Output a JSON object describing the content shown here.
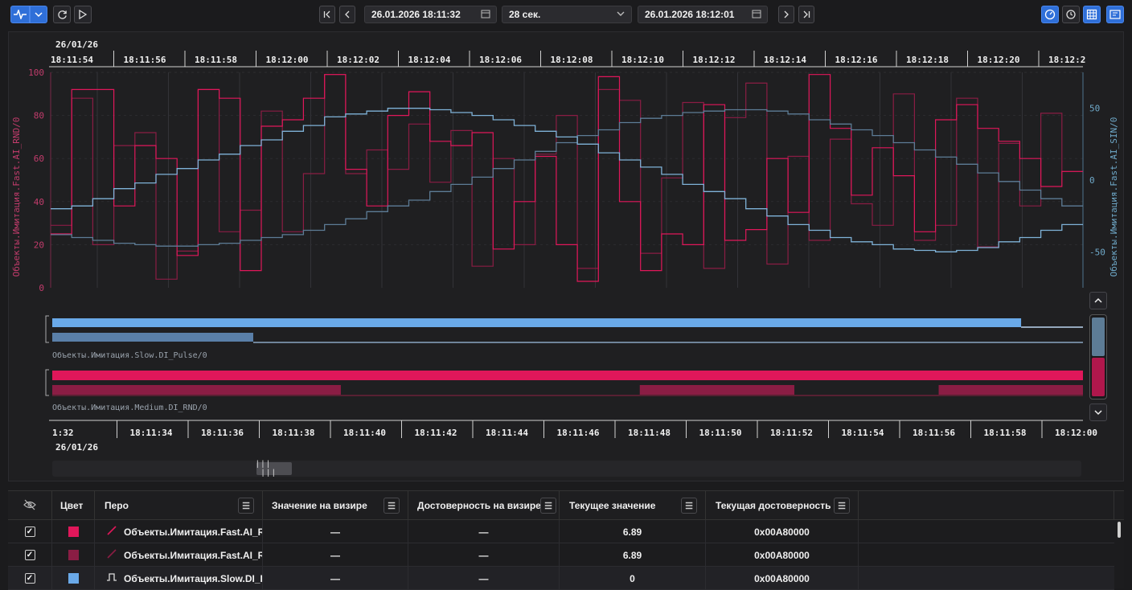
{
  "toolbar": {
    "mode_icon": "pulse-icon",
    "start_time": "26.01.2026 18:11:32",
    "duration": "28 сек.",
    "end_time": "26.01.2026 18:12:01"
  },
  "top_axis": {
    "date": "26/01/26",
    "ticks": [
      "18:11:54",
      "18:11:56",
      "18:11:58",
      "18:12:00",
      "18:12:02",
      "18:12:04",
      "18:12:06",
      "18:12:08",
      "18:12:10",
      "18:12:12",
      "18:12:14",
      "18:12:16",
      "18:12:18",
      "18:12:20",
      "18:12:2"
    ]
  },
  "bottom_axis": {
    "date": "26/01/26",
    "ticks": [
      "1:32",
      "18:11:34",
      "18:11:36",
      "18:11:38",
      "18:11:40",
      "18:11:42",
      "18:11:44",
      "18:11:46",
      "18:11:48",
      "18:11:50",
      "18:11:52",
      "18:11:54",
      "18:11:56",
      "18:11:58",
      "18:12:00"
    ]
  },
  "chart": {
    "left_axis_label": "Объекты.Имитация.Fast.AI_RND/0",
    "right_axis_label": "Объекты.Имитация.Fast.AI_SIN/0",
    "left_ticks": [
      "100",
      "80",
      "60",
      "40",
      "20",
      "0"
    ],
    "right_ticks": [
      "50",
      "0",
      "-50"
    ],
    "colors": {
      "rnd_bright": "#e0175a",
      "rnd_dark": "#8a1d44",
      "sin": "#7fb2d8",
      "sin_dark": "#5d7c96",
      "pulse": "#6aa9e8",
      "pulse_dark": "#5a7fa8"
    },
    "rnd_series": [
      25,
      92,
      92,
      38,
      66,
      60,
      15,
      92,
      88,
      8,
      75,
      78,
      88,
      99,
      55,
      38,
      80,
      91,
      68,
      66,
      72,
      18,
      40,
      61,
      20,
      3,
      98,
      40,
      8,
      25,
      20,
      85,
      22,
      27,
      60,
      35,
      99,
      74,
      43,
      65,
      52,
      26,
      78,
      85,
      74,
      68,
      60,
      47,
      54
    ],
    "rnd2_series": [
      29,
      88,
      20,
      66,
      72,
      4,
      17,
      92,
      26,
      36,
      82,
      26,
      53,
      99,
      53,
      64,
      55,
      76,
      49,
      73,
      10,
      60,
      20,
      62,
      80,
      9,
      92,
      87,
      16,
      51,
      86,
      9,
      79,
      95,
      11,
      61,
      22,
      69,
      39,
      29,
      90,
      22,
      29,
      88,
      19,
      67,
      38,
      81,
      54
    ],
    "sin_series": [
      -20,
      -18,
      -13,
      -6,
      -2,
      4,
      8,
      14,
      18,
      24,
      28,
      34,
      38,
      44,
      46,
      48,
      50,
      50,
      49,
      47,
      45,
      42,
      38,
      34,
      30,
      25,
      19,
      14,
      9,
      4,
      -3,
      -8,
      -13,
      -20,
      -25,
      -31,
      -35,
      -40,
      -43,
      -45,
      -48,
      -49,
      -50,
      -49,
      -47,
      -43,
      -40,
      -35,
      -31
    ],
    "sin2_series": [
      -38,
      -40,
      -42,
      -44,
      -45,
      -46,
      -46,
      -45,
      -44,
      -42,
      -40,
      -38,
      -35,
      -31,
      -27,
      -22,
      -18,
      -14,
      -8,
      -3,
      2,
      8,
      14,
      20,
      26,
      31,
      35,
      40,
      43,
      45,
      47,
      48,
      49,
      49,
      48,
      46,
      42,
      39,
      35,
      31,
      26,
      21,
      16,
      11,
      5,
      -1,
      -7,
      -13,
      -18
    ]
  },
  "discrete": {
    "pulse_label": "Объекты.Имитация.Slow.DI_Pulse/0",
    "rnd_label": "Объекты.Имитация.Medium.DI_RND/0",
    "pulse_high_until": 0.94,
    "pulse2_high_until": 0.195,
    "rnd2_segments": [
      [
        0,
        0.28
      ],
      [
        0.57,
        0.72
      ],
      [
        0.86,
        1
      ]
    ]
  },
  "table": {
    "headers": {
      "visible": "eye-off-icon",
      "color": "Цвет",
      "pen": "Перо",
      "value_cursor": "Значение на визире",
      "quality_cursor": "Достоверность на визире",
      "current_value": "Текущее значение",
      "current_quality": "Текущая достоверность"
    },
    "rows": [
      {
        "color": "#e0175a",
        "pen_icon": "line-icon",
        "pen": "Объекты.Имитация.Fast.AI_RND/",
        "value_cursor": "—",
        "quality_cursor": "—",
        "current_value": "6.89",
        "current_quality": "0x00A80000"
      },
      {
        "color": "#8a1d44",
        "pen_icon": "line-icon",
        "pen": "Объекты.Имитация.Fast.AI_RND/",
        "value_cursor": "—",
        "quality_cursor": "—",
        "current_value": "6.89",
        "current_quality": "0x00A80000"
      },
      {
        "color": "#6aa9e8",
        "pen_icon": "pulse-pen-icon",
        "pen": "Объекты.Имитация.Slow.DI_Puls",
        "value_cursor": "—",
        "quality_cursor": "—",
        "current_value": "0",
        "current_quality": "0x00A80000"
      }
    ]
  }
}
